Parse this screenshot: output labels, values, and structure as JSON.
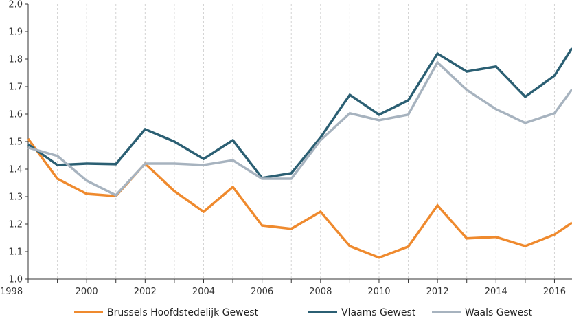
{
  "chart_data": {
    "type": "line",
    "title": "",
    "xlabel": "",
    "ylabel": "",
    "x": [
      1998,
      1999,
      2000,
      2001,
      2002,
      2003,
      2004,
      2005,
      2006,
      2007,
      2008,
      2009,
      2010,
      2011,
      2012,
      2013,
      2014,
      2015,
      2016,
      2016.6
    ],
    "x_ticks": [
      "1998",
      "2000",
      "2002",
      "2004",
      "2006",
      "2008",
      "2010",
      "2012",
      "2014",
      "2016"
    ],
    "y_ticks": [
      "1.0",
      "1.1",
      "1.2",
      "1.3",
      "1.4",
      "1.5",
      "1.6",
      "1.7",
      "1.8",
      "1.9",
      "2.0"
    ],
    "xlim": [
      1998,
      2016.6
    ],
    "ylim": [
      1.0,
      2.0
    ],
    "grid": "vertical dashed",
    "legend_position": "bottom",
    "series": [
      {
        "name": "Brussels Hoofdstedelijk Gewest",
        "color": "#ef8a2e",
        "values": [
          1.51,
          1.365,
          1.31,
          1.302,
          1.42,
          1.32,
          1.245,
          1.335,
          1.195,
          1.183,
          1.245,
          1.12,
          1.078,
          1.118,
          1.268,
          1.148,
          1.153,
          1.12,
          1.162,
          1.205
        ]
      },
      {
        "name": "Vlaams Gewest",
        "color": "#2b5f73",
        "values": [
          1.49,
          1.415,
          1.42,
          1.418,
          1.545,
          1.5,
          1.437,
          1.505,
          1.368,
          1.385,
          1.515,
          1.67,
          1.598,
          1.65,
          1.82,
          1.755,
          1.773,
          1.663,
          1.74,
          1.84
        ]
      },
      {
        "name": "Waals Gewest",
        "color": "#a7b3bf",
        "values": [
          1.478,
          1.448,
          1.358,
          1.305,
          1.42,
          1.42,
          1.415,
          1.432,
          1.365,
          1.365,
          1.505,
          1.603,
          1.578,
          1.598,
          1.788,
          1.688,
          1.618,
          1.568,
          1.603,
          1.69
        ]
      }
    ]
  }
}
